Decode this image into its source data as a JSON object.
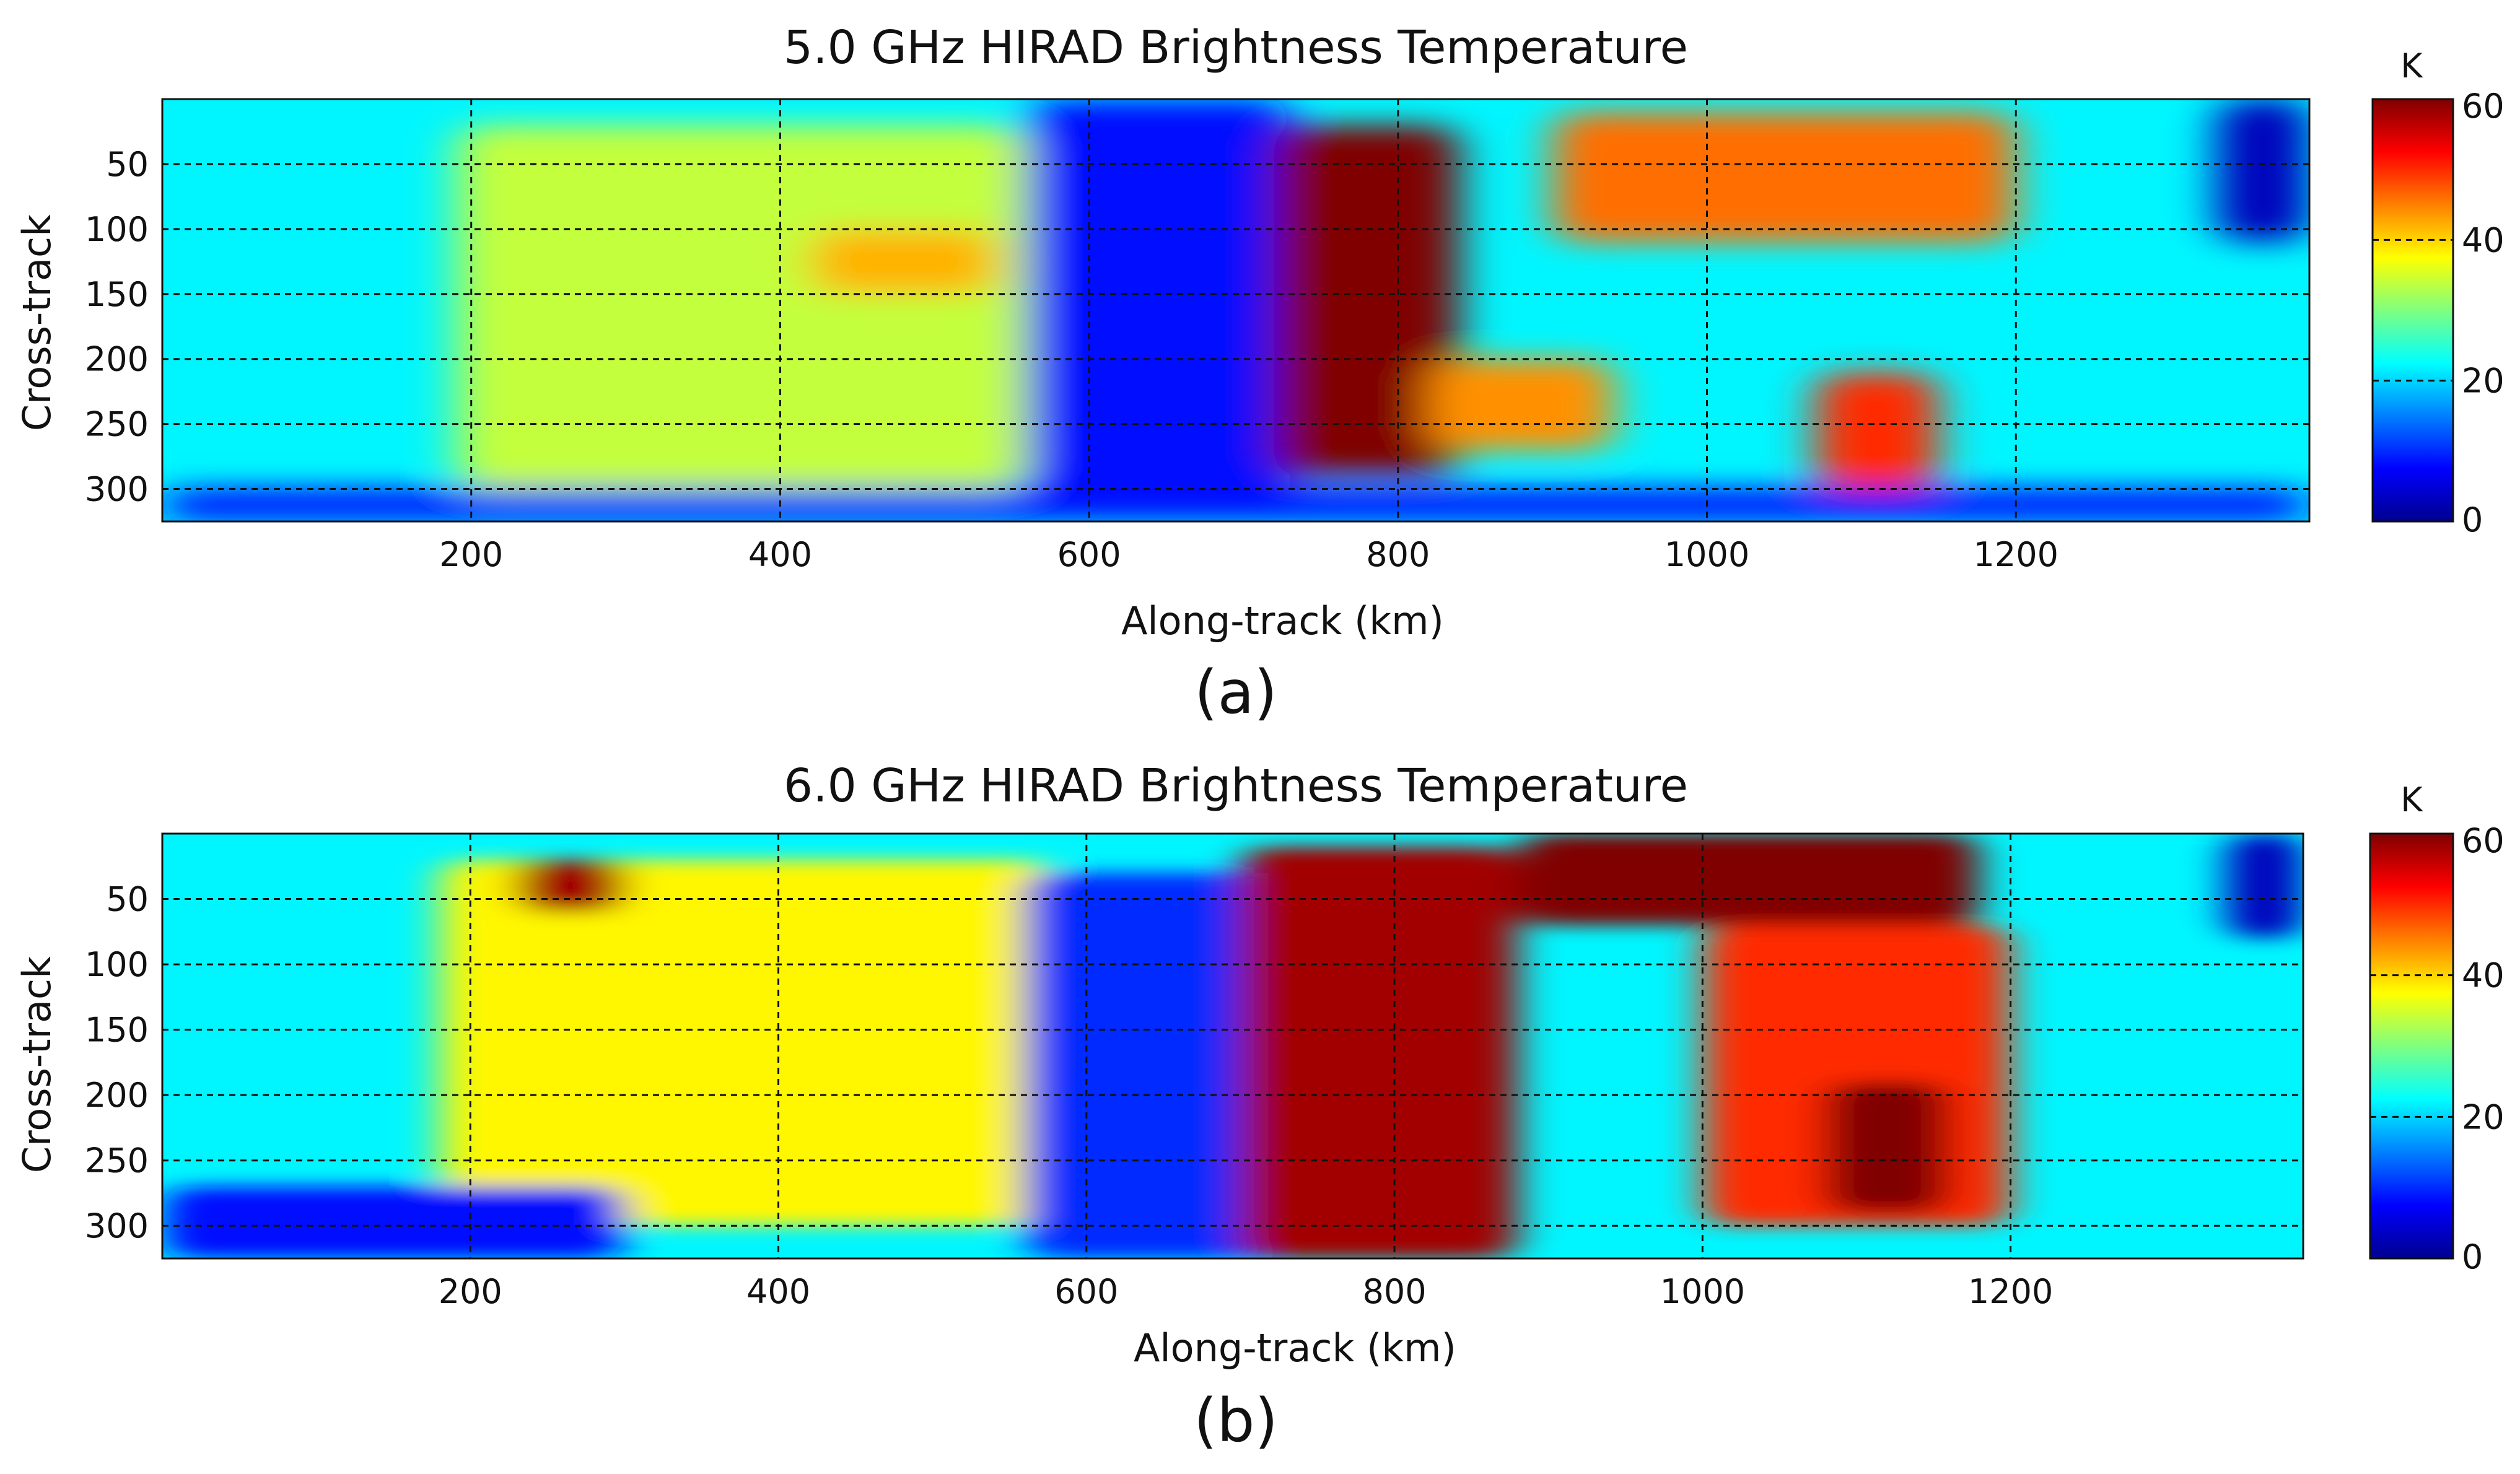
{
  "panels": [
    {
      "label": "(a)",
      "chart_data": {
        "type": "heatmap",
        "title": "5.0 GHz HIRAD Brightness Temperature",
        "xlabel": "Along-track (km)",
        "ylabel": "Cross-track",
        "xlim": [
          0,
          1390
        ],
        "ylim": [
          0,
          325
        ],
        "xticks": [
          200,
          400,
          600,
          800,
          1000,
          1200
        ],
        "yticks": [
          50,
          100,
          150,
          200,
          250,
          300
        ],
        "grid": true,
        "colorbar": {
          "label": "K",
          "range": [
            0,
            60
          ],
          "ticks": [
            0,
            20,
            40,
            60
          ],
          "colormap": "jet"
        },
        "background_K": 22,
        "features": [
          {
            "x": [
              190,
              560
            ],
            "y": [
              20,
              300
            ],
            "K": 34,
            "desc": "warm band"
          },
          {
            "x": [
              420,
              540
            ],
            "y": [
              100,
              150
            ],
            "K": 42,
            "desc": "local warm"
          },
          {
            "x": [
              560,
              730
            ],
            "y": [
              0,
              325
            ],
            "K": 8,
            "desc": "cold region"
          },
          {
            "x": [
              720,
              840
            ],
            "y": [
              20,
              290
            ],
            "K": 60,
            "desc": "hot core"
          },
          {
            "x": [
              820,
              940
            ],
            "y": [
              200,
              270
            ],
            "K": 44,
            "desc": "warm tail"
          },
          {
            "x": [
              900,
              1200
            ],
            "y": [
              10,
              110
            ],
            "K": 46,
            "desc": "warm upper band"
          },
          {
            "x": [
              1070,
              1150
            ],
            "y": [
              210,
              300
            ],
            "K": 50,
            "desc": "warm spot"
          },
          {
            "x": [
              1330,
              1390
            ],
            "y": [
              0,
              110
            ],
            "K": 3,
            "desc": "cold corner"
          },
          {
            "x": [
              0,
              1390
            ],
            "y": [
              300,
              325
            ],
            "K": 8,
            "desc": "cold bottom edge"
          }
        ]
      }
    },
    {
      "label": "(b)",
      "chart_data": {
        "type": "heatmap",
        "title": "6.0 GHz HIRAD Brightness Temperature",
        "xlabel": "Along-track (km)",
        "ylabel": "Cross-track",
        "xlim": [
          0,
          1390
        ],
        "ylim": [
          0,
          325
        ],
        "xticks": [
          200,
          400,
          600,
          800,
          1000,
          1200
        ],
        "yticks": [
          50,
          100,
          150,
          200,
          250,
          300
        ],
        "grid": true,
        "colorbar": {
          "label": "K",
          "range": [
            0,
            60
          ],
          "ticks": [
            0,
            20,
            40,
            60
          ],
          "colormap": "jet"
        },
        "background_K": 22,
        "features": [
          {
            "x": [
              180,
              580
            ],
            "y": [
              20,
              300
            ],
            "K": 38,
            "desc": "warm band"
          },
          {
            "x": [
              230,
              300
            ],
            "y": [
              20,
              60
            ],
            "K": 58,
            "desc": "hot spot"
          },
          {
            "x": [
              560,
              730
            ],
            "y": [
              30,
              325
            ],
            "K": 10,
            "desc": "cold region"
          },
          {
            "x": [
              700,
              880
            ],
            "y": [
              10,
              325
            ],
            "K": 58,
            "desc": "hot core"
          },
          {
            "x": [
              880,
              1180
            ],
            "y": [
              0,
              70
            ],
            "K": 60,
            "desc": "hot upper band"
          },
          {
            "x": [
              1000,
              1200
            ],
            "y": [
              70,
              300
            ],
            "K": 50,
            "desc": "warm region"
          },
          {
            "x": [
              1080,
              1160
            ],
            "y": [
              190,
              290
            ],
            "K": 60,
            "desc": "hot spot"
          },
          {
            "x": [
              1340,
              1390
            ],
            "y": [
              0,
              80
            ],
            "K": 3,
            "desc": "cold corner"
          },
          {
            "x": [
              0,
              300
            ],
            "y": [
              270,
              325
            ],
            "K": 8,
            "desc": "cold lower-left"
          }
        ]
      }
    }
  ]
}
